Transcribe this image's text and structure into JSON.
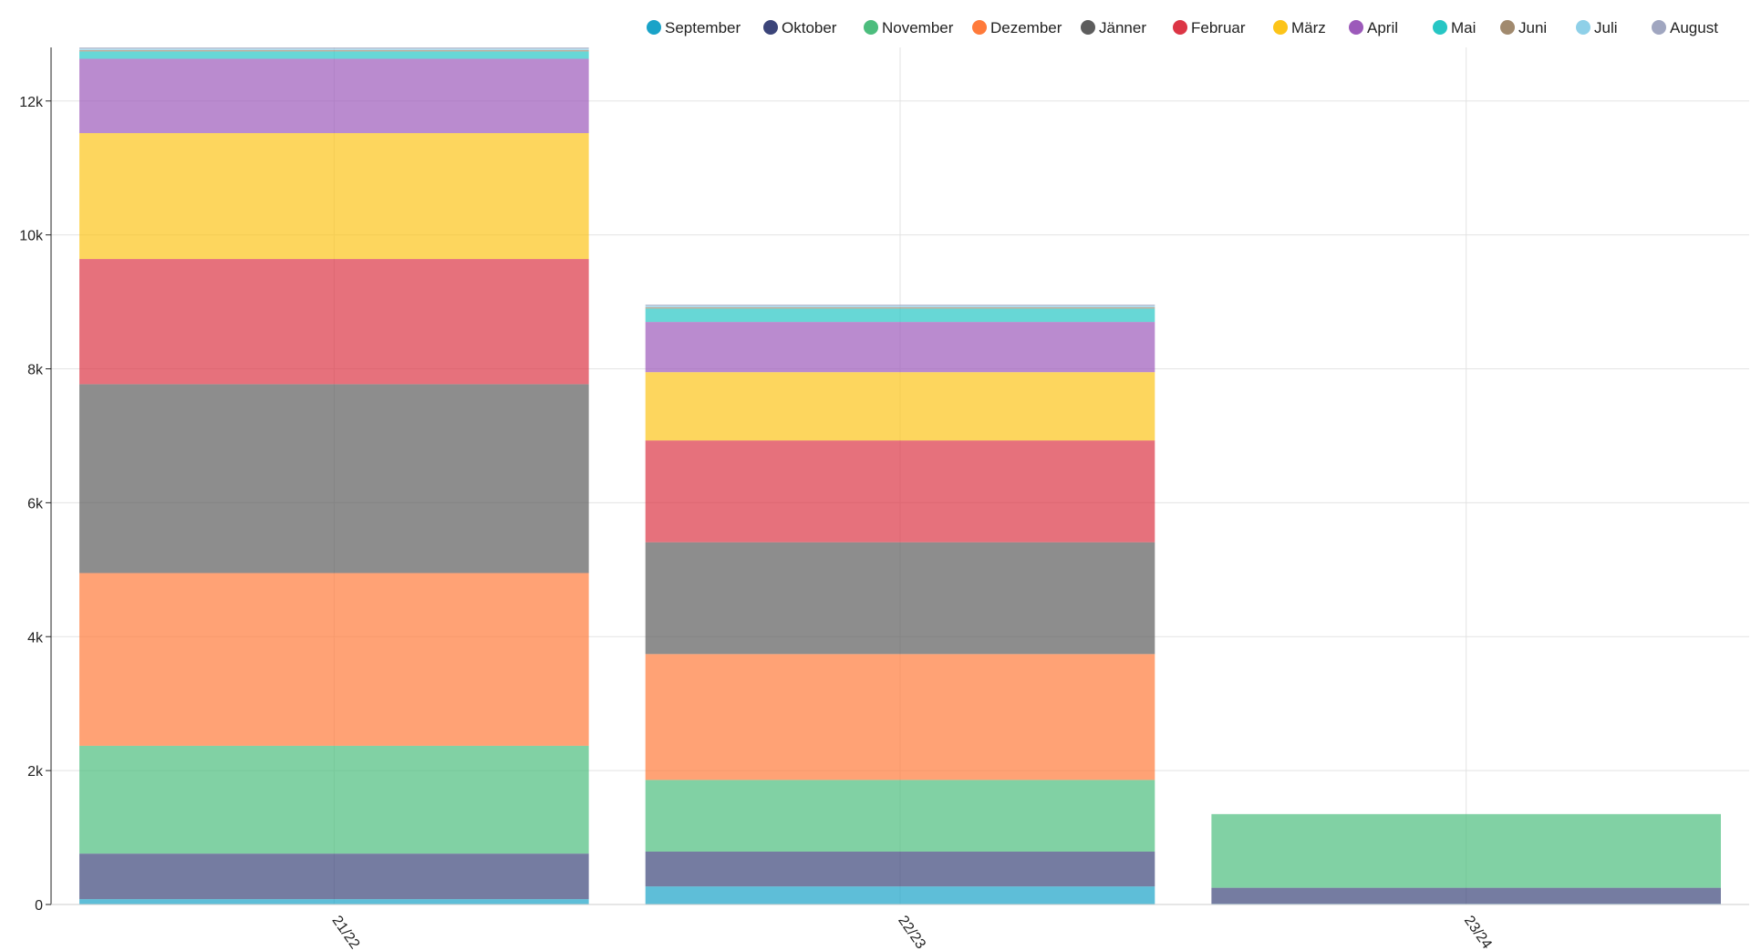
{
  "chart_data": {
    "type": "bar",
    "stacked": true,
    "categories": [
      "21/22",
      "22/23",
      "23/24"
    ],
    "ylim": [
      0,
      12800
    ],
    "yticks": [
      0,
      2000,
      4000,
      6000,
      8000,
      10000,
      12000
    ],
    "ytick_labels": [
      "0",
      "2k",
      "4k",
      "6k",
      "8k",
      "10k",
      "12k"
    ],
    "grid": true,
    "legend_position": "top-right",
    "series": [
      {
        "name": "September",
        "color": "#1aa3c8",
        "values": [
          80,
          270,
          10
        ]
      },
      {
        "name": "Oktober",
        "color": "#3b4479",
        "values": [
          680,
          520,
          240
        ]
      },
      {
        "name": "November",
        "color": "#4cbd7d",
        "values": [
          1610,
          1070,
          1100
        ]
      },
      {
        "name": "Dezember",
        "color": "#ff7a3a",
        "values": [
          2580,
          1880,
          0
        ]
      },
      {
        "name": "Jänner",
        "color": "#5d5d5d",
        "values": [
          2820,
          1670,
          0
        ]
      },
      {
        "name": "Februar",
        "color": "#dc3545",
        "values": [
          1870,
          1520,
          0
        ]
      },
      {
        "name": "März",
        "color": "#fcc419",
        "values": [
          1880,
          1020,
          0
        ]
      },
      {
        "name": "April",
        "color": "#9c5aba",
        "values": [
          1110,
          750,
          0
        ]
      },
      {
        "name": "Mai",
        "color": "#26c6c4",
        "values": [
          110,
          200,
          0
        ]
      },
      {
        "name": "Juni",
        "color": "#a18a6e",
        "values": [
          20,
          20,
          0
        ]
      },
      {
        "name": "Juli",
        "color": "#8fd0e8",
        "values": [
          20,
          20,
          0
        ]
      },
      {
        "name": "August",
        "color": "#a0a6c0",
        "values": [
          20,
          20,
          0
        ]
      }
    ]
  }
}
